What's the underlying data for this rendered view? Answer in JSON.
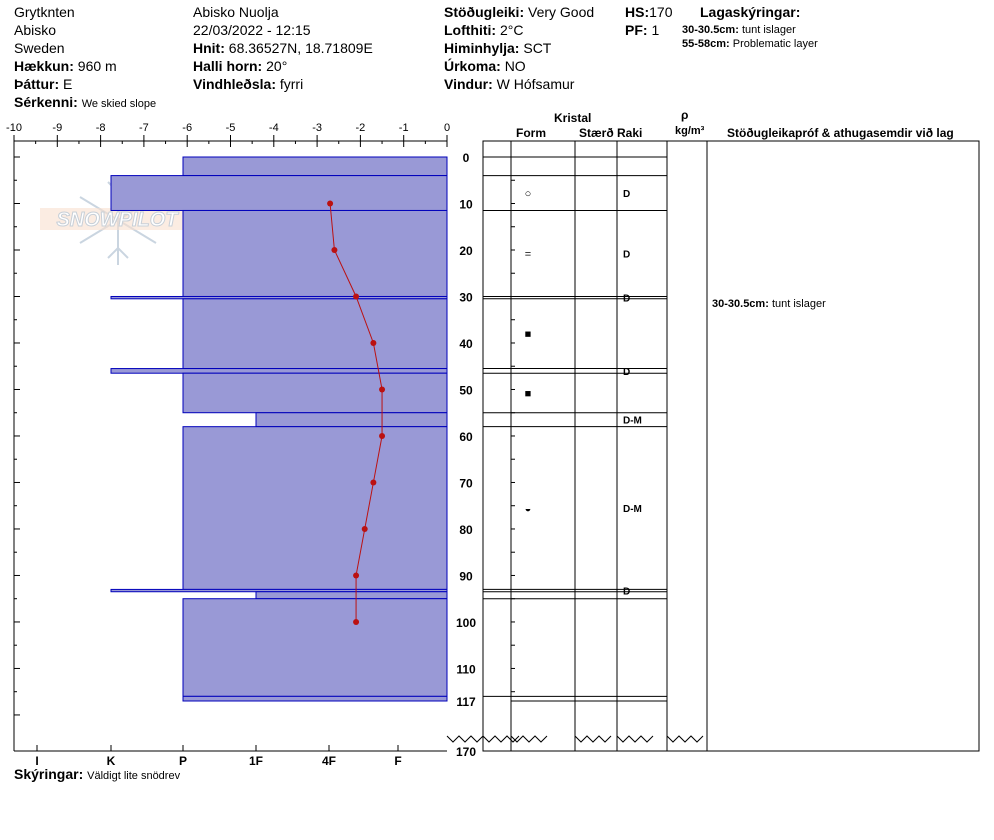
{
  "header": {
    "observer": "Grytknten",
    "region": "Abisko",
    "country": "Sweden",
    "elevation_label": "Hækkun:",
    "elevation_value": "960 m",
    "aspect_label": "Þáttur:",
    "aspect_value": "E",
    "features_label": "Sérkenni:",
    "features_value": "We skied slope",
    "location": "Abisko Nuolja",
    "datetime": "22/03/2022 - 12:15",
    "coords_label": "Hnit:",
    "coords_value": "68.36527N, 18.71809E",
    "slope_label": "Halli horn:",
    "slope_value": "20°",
    "wind_loading_label": "Vindhleðsla:",
    "wind_loading_value": "fyrri",
    "stability_label": "Stöðugleiki:",
    "stability_value": "Very Good",
    "air_temp_label": "Lofthiti:",
    "air_temp_value": "2°C",
    "sky_label": "Himinhylja:",
    "sky_value": "SCT",
    "precip_label": "Úrkoma:",
    "precip_value": "NO",
    "wind_label": "Vindur:",
    "wind_value": "W Hófsamur",
    "hs_label": "HS:",
    "hs_value": "170",
    "pf_label": "PF:",
    "pf_value": "1",
    "layers_title": "Lagaskýringar:",
    "layer_notes": [
      {
        "range": "30-30.5cm:",
        "text": "tunt islager"
      },
      {
        "range": "55-58cm:",
        "text": "Problematic layer"
      }
    ]
  },
  "column_headers": {
    "crystal": "Kristal",
    "form": "Form",
    "size": "Stærð",
    "moisture": "Raki",
    "rho": "ρ",
    "density_unit": "kg/m³",
    "comments": "Stöðugleikapróf & athugasemdir við lag"
  },
  "comments": [
    {
      "range": "30-30.5cm:",
      "text": "tunt islager"
    }
  ],
  "footer": {
    "legend_label": "Skýringar:",
    "legend_value": "Väldigt lite snödrev"
  },
  "watermark": "SNOWPILOT",
  "colors": {
    "layer_fill": "#9999d6",
    "layer_stroke": "#0000bb",
    "temp_line": "#bb1111"
  },
  "chart_data": {
    "type": "snow_profile",
    "temperature_axis": {
      "ticks": [
        "-10",
        "-9",
        "-8",
        "-7",
        "-6",
        "-5",
        "-4",
        "-3",
        "-2",
        "-1",
        "0"
      ],
      "range": [
        -10,
        0
      ]
    },
    "depth_axis": {
      "ticks": [
        "0",
        "10",
        "20",
        "30",
        "40",
        "50",
        "60",
        "70",
        "80",
        "90",
        "100",
        "110",
        "117"
      ],
      "range": [
        0,
        117
      ],
      "total_label": "170"
    },
    "hardness_labels": [
      "I",
      "K",
      "P",
      "1F",
      "4F",
      "F"
    ],
    "layers": [
      {
        "top": 0,
        "bottom": 4,
        "hardness": "P"
      },
      {
        "top": 4,
        "bottom": 11.5,
        "hardness": "K"
      },
      {
        "top": 11.5,
        "bottom": 30,
        "hardness": "P"
      },
      {
        "top": 30,
        "bottom": 30.5,
        "hardness": "K"
      },
      {
        "top": 30.5,
        "bottom": 45.5,
        "hardness": "P"
      },
      {
        "top": 45.5,
        "bottom": 46.5,
        "hardness": "K"
      },
      {
        "top": 46.5,
        "bottom": 55,
        "hardness": "P"
      },
      {
        "top": 55,
        "bottom": 58,
        "hardness": "1F"
      },
      {
        "top": 58,
        "bottom": 93,
        "hardness": "P"
      },
      {
        "top": 93,
        "bottom": 93.5,
        "hardness": "K"
      },
      {
        "top": 93.5,
        "bottom": 95,
        "hardness": "1F"
      },
      {
        "top": 95,
        "bottom": 116,
        "hardness": "P"
      },
      {
        "top": 116,
        "bottom": 117,
        "hardness": "P"
      }
    ],
    "temperature_profile": [
      {
        "depth": 10,
        "temp": -2.7
      },
      {
        "depth": 20,
        "temp": -2.6
      },
      {
        "depth": 30,
        "temp": -2.1
      },
      {
        "depth": 40,
        "temp": -1.7
      },
      {
        "depth": 50,
        "temp": -1.5
      },
      {
        "depth": 60,
        "temp": -1.5
      },
      {
        "depth": 70,
        "temp": -1.7
      },
      {
        "depth": 80,
        "temp": -1.9
      },
      {
        "depth": 90,
        "temp": -2.1
      },
      {
        "depth": 100,
        "temp": -2.1
      }
    ],
    "grain_rows": [
      {
        "top": 0,
        "bottom": 4,
        "form": "",
        "moisture": ""
      },
      {
        "top": 4,
        "bottom": 11.5,
        "form": "○",
        "moisture": "D"
      },
      {
        "top": 11.5,
        "bottom": 30,
        "form": "=",
        "moisture": "D"
      },
      {
        "top": 30,
        "bottom": 30.5,
        "form": "",
        "moisture": "D"
      },
      {
        "top": 30.5,
        "bottom": 45.5,
        "form": "■",
        "moisture": ""
      },
      {
        "top": 45.5,
        "bottom": 46.5,
        "form": "",
        "moisture": "D"
      },
      {
        "top": 46.5,
        "bottom": 55,
        "form": "■",
        "moisture": ""
      },
      {
        "top": 55,
        "bottom": 58,
        "form": "",
        "moisture": "D-M"
      },
      {
        "top": 58,
        "bottom": 93,
        "form": "◒",
        "moisture": "D-M"
      },
      {
        "top": 93,
        "bottom": 93.5,
        "form": "",
        "moisture": "D"
      },
      {
        "top": 93.5,
        "bottom": 95,
        "form": "",
        "moisture": ""
      },
      {
        "top": 95,
        "bottom": 116,
        "form": "",
        "moisture": ""
      },
      {
        "top": 116,
        "bottom": 117,
        "form": "",
        "moisture": ""
      }
    ]
  }
}
